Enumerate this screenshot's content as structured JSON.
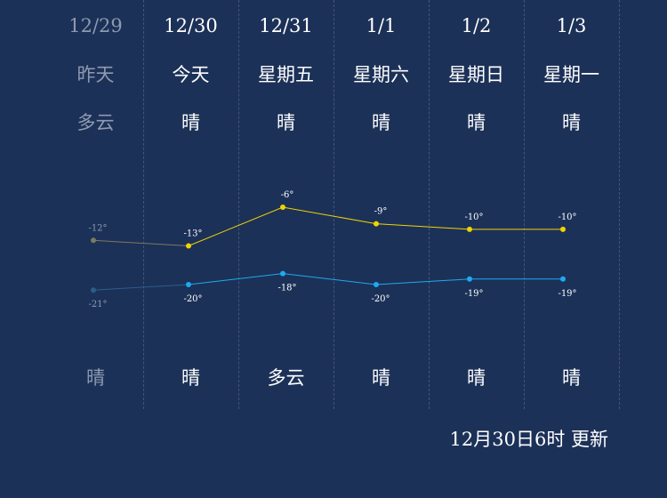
{
  "days": [
    {
      "date": "12/29",
      "week": "昨天",
      "day_weather": "多云",
      "night_weather": "晴",
      "past": true
    },
    {
      "date": "12/30",
      "week": "今天",
      "day_weather": "晴",
      "night_weather": "晴",
      "past": false
    },
    {
      "date": "12/31",
      "week": "星期五",
      "day_weather": "晴",
      "night_weather": "多云",
      "past": false
    },
    {
      "date": "1/1",
      "week": "星期六",
      "day_weather": "晴",
      "night_weather": "晴",
      "past": false
    },
    {
      "date": "1/2",
      "week": "星期日",
      "day_weather": "晴",
      "night_weather": "晴",
      "past": false
    },
    {
      "date": "1/3",
      "week": "星期一",
      "day_weather": "晴",
      "night_weather": "晴",
      "past": false
    }
  ],
  "chart_data": {
    "type": "line",
    "categories": [
      "12/29",
      "12/30",
      "12/31",
      "1/1",
      "1/2",
      "1/3"
    ],
    "series": [
      {
        "values": [
          -12,
          -13,
          -6,
          -9,
          -10,
          -10
        ],
        "labels": [
          "-12°",
          "-13°",
          "-6°",
          "-9°",
          "-10°",
          "-10°"
        ],
        "color": "#f0d400",
        "past_color": "#7a7a62"
      },
      {
        "values": [
          -21,
          -20,
          -18,
          -20,
          -19,
          -19
        ],
        "labels": [
          "-21°",
          "-20°",
          "-18°",
          "-20°",
          "-19°",
          "-19°"
        ],
        "color": "#1eaaf0",
        "past_color": "#2a5e8a"
      }
    ]
  },
  "update_text": "12月30日6时 更新",
  "colors": {
    "background": "#1c3158",
    "past_text": "#8e9ab0",
    "text": "#ffffff"
  }
}
